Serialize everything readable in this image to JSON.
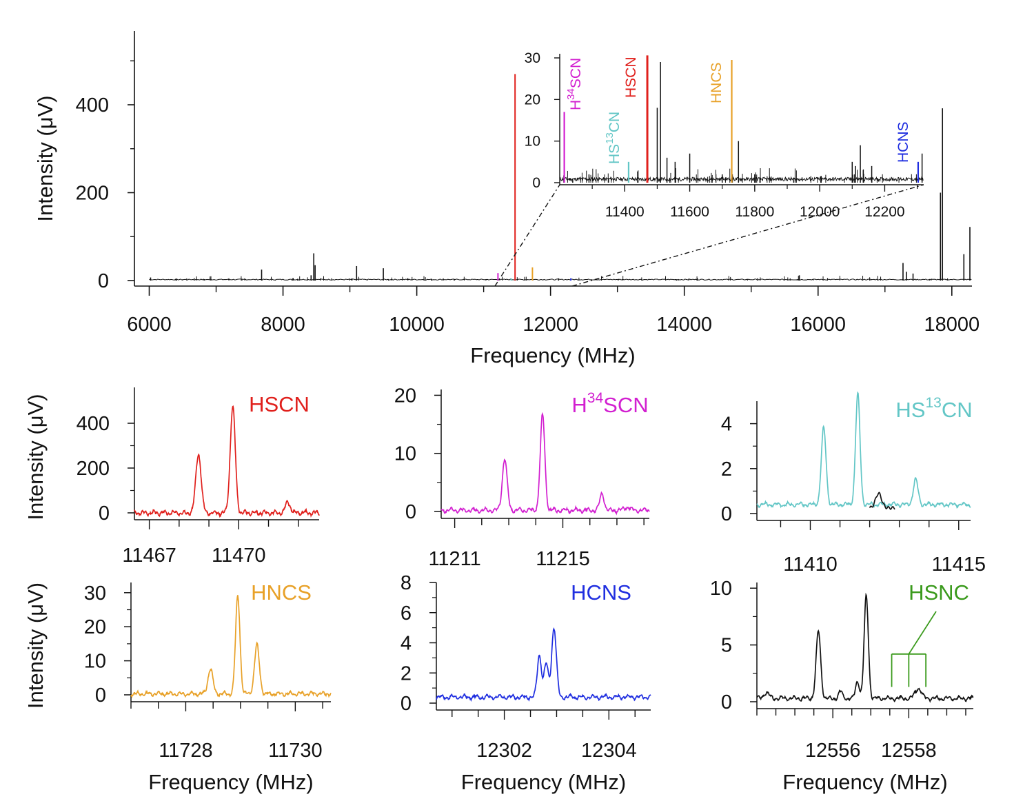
{
  "colors": {
    "axis": "#111111",
    "HSCN": "#e0201c",
    "H34SCN": "#d21fd0",
    "HS13CN": "#62c6c6",
    "HNCS": "#e8a128",
    "HCNS": "#1f2ee0",
    "HSNC": "#3a9a1c",
    "spectrum": "#111111"
  },
  "chart_data": [
    {
      "type": "line",
      "panel": "overview",
      "xlabel": "Frequency (MHz)",
      "ylabel": "Intensity (μV)",
      "xlim": [
        6000,
        18300
      ],
      "ylim": [
        0,
        560
      ],
      "xticks": [
        "6000",
        "8000",
        "10000",
        "12000",
        "14000",
        "16000",
        "18000"
      ],
      "yticks": [
        "0",
        "200",
        "400"
      ],
      "lines": [
        {
          "x": 6020,
          "y": 7
        },
        {
          "x": 6400,
          "y": 4
        },
        {
          "x": 6820,
          "y": 3
        },
        {
          "x": 7680,
          "y": 25
        },
        {
          "x": 8150,
          "y": 6
        },
        {
          "x": 8220,
          "y": 4
        },
        {
          "x": 8420,
          "y": 12
        },
        {
          "x": 8460,
          "y": 62
        },
        {
          "x": 8480,
          "y": 35
        },
        {
          "x": 9030,
          "y": 5
        },
        {
          "x": 9100,
          "y": 33
        },
        {
          "x": 9500,
          "y": 28
        },
        {
          "x": 10220,
          "y": 4
        },
        {
          "x": 10560,
          "y": 3
        },
        {
          "x": 12120,
          "y": 5
        },
        {
          "x": 13880,
          "y": 3
        },
        {
          "x": 15720,
          "y": 12
        },
        {
          "x": 17270,
          "y": 40
        },
        {
          "x": 17320,
          "y": 20
        },
        {
          "x": 17420,
          "y": 16
        },
        {
          "x": 17830,
          "y": 200
        },
        {
          "x": 17860,
          "y": 392
        },
        {
          "x": 18180,
          "y": 60
        },
        {
          "x": 18270,
          "y": 122
        }
      ],
      "species_lines": [
        {
          "species": "H34SCN",
          "x": 11214,
          "y": 17
        },
        {
          "species": "HS13CN",
          "x": 11412,
          "y": 5
        },
        {
          "species": "HSCN",
          "x": 11469.5,
          "y": 470
        },
        {
          "species": "HNCS",
          "x": 11729.3,
          "y": 30
        },
        {
          "species": "HCNS",
          "x": 12302.9,
          "y": 5
        }
      ]
    },
    {
      "type": "line",
      "panel": "inset",
      "xlim": [
        11200,
        12320
      ],
      "ylim": [
        0,
        30
      ],
      "xticks": [
        "11400",
        "11600",
        "11800",
        "12000",
        "12200"
      ],
      "yticks": [
        "0",
        "10",
        "20",
        "30"
      ],
      "lines": [
        {
          "x": 11240,
          "y": 1
        },
        {
          "x": 11290,
          "y": 2
        },
        {
          "x": 11350,
          "y": 1
        },
        {
          "x": 11500,
          "y": 18
        },
        {
          "x": 11510,
          "y": 29
        },
        {
          "x": 11530,
          "y": 6
        },
        {
          "x": 11555,
          "y": 5
        },
        {
          "x": 11600,
          "y": 7
        },
        {
          "x": 11700,
          "y": 2
        },
        {
          "x": 11750,
          "y": 10
        },
        {
          "x": 11800,
          "y": 2
        },
        {
          "x": 11920,
          "y": 1
        },
        {
          "x": 12100,
          "y": 5
        },
        {
          "x": 12110,
          "y": 4
        },
        {
          "x": 12125,
          "y": 9
        },
        {
          "x": 12160,
          "y": 4
        },
        {
          "x": 12315,
          "y": 7
        }
      ],
      "species_lines": [
        {
          "species": "H34SCN",
          "label_parts": [
            "H",
            "34",
            "SCN"
          ],
          "x": 11214,
          "y": 17
        },
        {
          "species": "HS13CN",
          "label_parts": [
            "HS",
            "13",
            "CN"
          ],
          "x": 11412,
          "y": 5
        },
        {
          "species": "HSCN",
          "label_parts": [
            "HSCN"
          ],
          "x": 11469.5,
          "y": 30.6
        },
        {
          "species": "HNCS",
          "label_parts": [
            "HNCS"
          ],
          "x": 11729.3,
          "y": 29.5
        },
        {
          "species": "HCNS",
          "label_parts": [
            "HCNS"
          ],
          "x": 12302.9,
          "y": 5
        }
      ]
    },
    {
      "type": "line",
      "panel": "HSCN",
      "label_parts": [
        "HSCN"
      ],
      "ylabel": "Intensity (μV)",
      "xlim": [
        11466.5,
        11472.7
      ],
      "ylim": [
        0,
        560
      ],
      "xticks": [
        "11467",
        "11470"
      ],
      "yticks": [
        "0",
        "200",
        "400"
      ],
      "baseline": 0,
      "peaks": [
        [
          11468.65,
          262,
          0.09
        ],
        [
          11469.8,
          474,
          0.085
        ],
        [
          11471.65,
          48,
          0.08
        ]
      ]
    },
    {
      "type": "line",
      "panel": "H34SCN",
      "label_parts": [
        "H",
        "34",
        "SCN"
      ],
      "xlim": [
        11210.5,
        11218.2
      ],
      "ylim": [
        0,
        21
      ],
      "xticks": [
        "11211",
        "11215"
      ],
      "yticks": [
        "0",
        "10",
        "20"
      ],
      "baseline": 0.2,
      "peaks": [
        [
          11212.85,
          8.8,
          0.09
        ],
        [
          11214.25,
          16.4,
          0.085
        ],
        [
          11216.45,
          2.9,
          0.08
        ],
        [
          11217.4,
          0.6,
          0.1
        ]
      ]
    },
    {
      "type": "line",
      "panel": "HS13CN",
      "label_parts": [
        "HS",
        "13",
        "CN"
      ],
      "xlim": [
        11408.2,
        11415.4
      ],
      "ylim": [
        0,
        5
      ],
      "xticks": [
        "11410",
        "11415"
      ],
      "yticks": [
        "0",
        "2",
        "4"
      ],
      "baseline": 0.4,
      "peaks": [
        [
          11410.45,
          3.4,
          0.08
        ],
        [
          11411.6,
          4.9,
          0.075
        ],
        [
          11413.55,
          1.1,
          0.08
        ]
      ],
      "black_segment": [
        11412.0,
        11412.85
      ],
      "black_peak": [
        11412.3,
        0.65,
        0.1
      ]
    },
    {
      "type": "line",
      "panel": "HNCS",
      "label_parts": [
        "HNCS"
      ],
      "ylabel": "Intensity (μV)",
      "xlabel": "Frequency (MHz)",
      "xlim": [
        11727.0,
        11730.65
      ],
      "ylim": [
        0,
        33
      ],
      "xticks": [
        "11728",
        "11730"
      ],
      "yticks": [
        "0",
        "10",
        "20",
        "30"
      ],
      "baseline": 0.3,
      "peaks": [
        [
          11728.45,
          7.3,
          0.045
        ],
        [
          11728.95,
          28.8,
          0.04
        ],
        [
          11729.3,
          14.2,
          0.045
        ]
      ]
    },
    {
      "type": "line",
      "panel": "HCNS",
      "label_parts": [
        "HCNS"
      ],
      "xlabel": "Frequency (MHz)",
      "xlim": [
        12300.7,
        12304.8
      ],
      "ylim": [
        0,
        8
      ],
      "xticks": [
        "12302",
        "12304"
      ],
      "yticks": [
        "0",
        "2",
        "4",
        "6",
        "8"
      ],
      "baseline": 0.4,
      "peaks": [
        [
          12302.67,
          2.8,
          0.04
        ],
        [
          12302.8,
          2.2,
          0.04
        ],
        [
          12302.95,
          4.6,
          0.045
        ]
      ]
    },
    {
      "type": "line",
      "panel": "HSNC",
      "label_parts": [
        "HSNC"
      ],
      "xlabel": "Frequency (MHz)",
      "xlim": [
        12554.0,
        12559.7
      ],
      "ylim": [
        0,
        10.5
      ],
      "xticks": [
        "12556",
        "12558"
      ],
      "yticks": [
        "0",
        "5",
        "10"
      ],
      "baseline": 0.3,
      "peaks": [
        [
          12555.62,
          5.9,
          0.06
        ],
        [
          12556.2,
          0.6,
          0.05
        ],
        [
          12556.65,
          1.5,
          0.05
        ],
        [
          12556.88,
          9.0,
          0.055
        ],
        [
          12558.25,
          0.9,
          0.08
        ],
        [
          12554.25,
          0.5,
          0.07
        ]
      ],
      "transitions": [
        12557.55,
        12558.0,
        12558.45
      ]
    }
  ]
}
